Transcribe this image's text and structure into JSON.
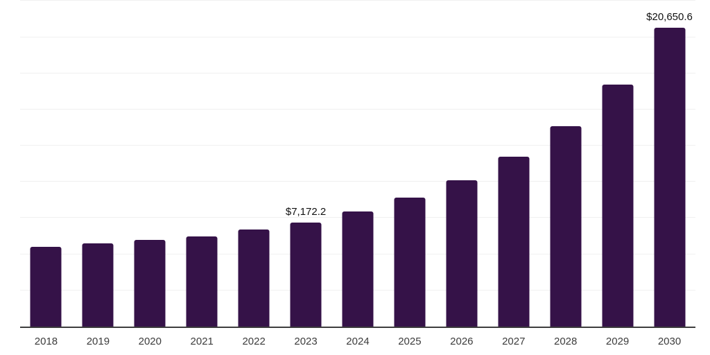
{
  "chart_data": {
    "type": "bar",
    "title": "",
    "xlabel": "",
    "ylabel": "",
    "categories": [
      "2018",
      "2019",
      "2020",
      "2021",
      "2022",
      "2023",
      "2024",
      "2025",
      "2026",
      "2027",
      "2028",
      "2029",
      "2030"
    ],
    "values": [
      5520,
      5750,
      5975,
      6240,
      6690,
      7172.2,
      7950,
      8910,
      10090,
      11740,
      13850,
      16720,
      20650.6
    ],
    "data_labels": [
      {
        "index": 5,
        "text": "$7,172.2"
      },
      {
        "index": 12,
        "text": "$20,650.6"
      }
    ],
    "ylim": [
      0,
      22567
    ],
    "y_gridline_step": 2500,
    "grid": "horizontal",
    "legend": "none",
    "bar_color": "#351248",
    "gridline_color": "#f0f0f0",
    "axis_line_color": "#3d3d3d",
    "tick_label_color": "#3c3c3c",
    "data_label_color": "#111111"
  }
}
